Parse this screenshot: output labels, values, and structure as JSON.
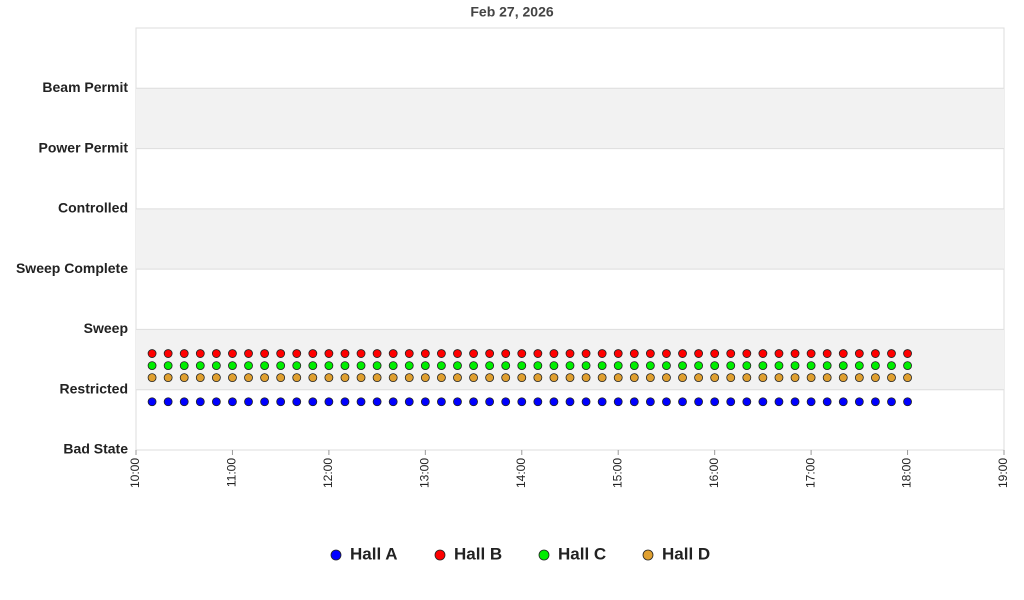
{
  "chart_data": {
    "type": "scatter",
    "title": "Feb 27, 2026",
    "x": [
      "10:10",
      "10:20",
      "10:30",
      "10:40",
      "10:50",
      "11:00",
      "11:10",
      "11:20",
      "11:30",
      "11:40",
      "11:50",
      "12:00",
      "12:10",
      "12:20",
      "12:30",
      "12:40",
      "12:50",
      "13:00",
      "13:10",
      "13:20",
      "13:30",
      "13:40",
      "13:50",
      "14:00",
      "14:10",
      "14:20",
      "14:30",
      "14:40",
      "14:50",
      "15:00",
      "15:10",
      "15:20",
      "15:30",
      "15:40",
      "15:50",
      "16:00",
      "16:10",
      "16:20",
      "16:30",
      "16:40",
      "16:50",
      "17:00",
      "17:10",
      "17:20",
      "17:30",
      "17:40",
      "17:50",
      "18:00"
    ],
    "xlim": [
      "10:00",
      "19:00"
    ],
    "xticks": [
      "10:00",
      "11:00",
      "12:00",
      "13:00",
      "14:00",
      "15:00",
      "16:00",
      "17:00",
      "18:00",
      "19:00"
    ],
    "ylim": [
      0,
      7
    ],
    "yticks": [
      {
        "value": 0,
        "label": "Bad State"
      },
      {
        "value": 1,
        "label": "Restricted"
      },
      {
        "value": 2,
        "label": "Sweep"
      },
      {
        "value": 3,
        "label": "Sweep Complete"
      },
      {
        "value": 4,
        "label": "Controlled"
      },
      {
        "value": 5,
        "label": "Power Permit"
      },
      {
        "value": 6,
        "label": "Beam Permit"
      }
    ],
    "grid": true,
    "legend": "bottom",
    "series": [
      {
        "name": "Hall A",
        "color": "#0000ff",
        "values": [
          0.8,
          0.8,
          0.8,
          0.8,
          0.8,
          0.8,
          0.8,
          0.8,
          0.8,
          0.8,
          0.8,
          0.8,
          0.8,
          0.8,
          0.8,
          0.8,
          0.8,
          0.8,
          0.8,
          0.8,
          0.8,
          0.8,
          0.8,
          0.8,
          0.8,
          0.8,
          0.8,
          0.8,
          0.8,
          0.8,
          0.8,
          0.8,
          0.8,
          0.8,
          0.8,
          0.8,
          0.8,
          0.8,
          0.8,
          0.8,
          0.8,
          0.8,
          0.8,
          0.8,
          0.8,
          0.8,
          0.8,
          0.8
        ]
      },
      {
        "name": "Hall B",
        "color": "#ff0000",
        "values": [
          1.6,
          1.6,
          1.6,
          1.6,
          1.6,
          1.6,
          1.6,
          1.6,
          1.6,
          1.6,
          1.6,
          1.6,
          1.6,
          1.6,
          1.6,
          1.6,
          1.6,
          1.6,
          1.6,
          1.6,
          1.6,
          1.6,
          1.6,
          1.6,
          1.6,
          1.6,
          1.6,
          1.6,
          1.6,
          1.6,
          1.6,
          1.6,
          1.6,
          1.6,
          1.6,
          1.6,
          1.6,
          1.6,
          1.6,
          1.6,
          1.6,
          1.6,
          1.6,
          1.6,
          1.6,
          1.6,
          1.6,
          1.6
        ]
      },
      {
        "name": "Hall C",
        "color": "#00ee00",
        "values": [
          1.4,
          1.4,
          1.4,
          1.4,
          1.4,
          1.4,
          1.4,
          1.4,
          1.4,
          1.4,
          1.4,
          1.4,
          1.4,
          1.4,
          1.4,
          1.4,
          1.4,
          1.4,
          1.4,
          1.4,
          1.4,
          1.4,
          1.4,
          1.4,
          1.4,
          1.4,
          1.4,
          1.4,
          1.4,
          1.4,
          1.4,
          1.4,
          1.4,
          1.4,
          1.4,
          1.4,
          1.4,
          1.4,
          1.4,
          1.4,
          1.4,
          1.4,
          1.4,
          1.4,
          1.4,
          1.4,
          1.4,
          1.4
        ]
      },
      {
        "name": "Hall D",
        "color": "#e0a030",
        "values": [
          1.2,
          1.2,
          1.2,
          1.2,
          1.2,
          1.2,
          1.2,
          1.2,
          1.2,
          1.2,
          1.2,
          1.2,
          1.2,
          1.2,
          1.2,
          1.2,
          1.2,
          1.2,
          1.2,
          1.2,
          1.2,
          1.2,
          1.2,
          1.2,
          1.2,
          1.2,
          1.2,
          1.2,
          1.2,
          1.2,
          1.2,
          1.2,
          1.2,
          1.2,
          1.2,
          1.2,
          1.2,
          1.2,
          1.2,
          1.2,
          1.2,
          1.2,
          1.2,
          1.2,
          1.2,
          1.2,
          1.2,
          1.2
        ]
      }
    ]
  }
}
